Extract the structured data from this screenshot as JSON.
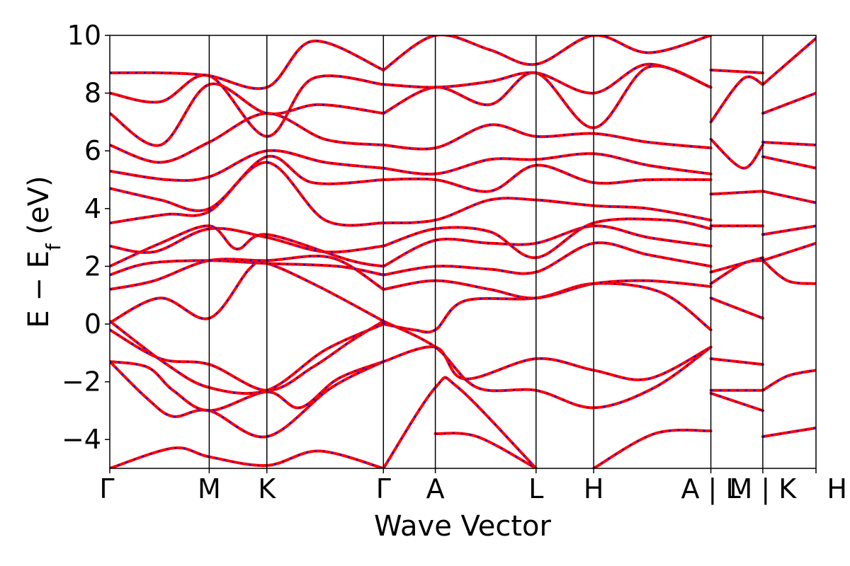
{
  "chart_data": {
    "type": "line",
    "xlabel": "Wave Vector",
    "ylabel_parts": {
      "main": "E − E",
      "sub": "f",
      "unit": " (eV)"
    },
    "ylim": [
      -5,
      10
    ],
    "yticks": [
      -4,
      -2,
      0,
      2,
      4,
      6,
      8,
      10
    ],
    "ytick_labels": [
      "−4",
      "−2",
      "0",
      "2",
      "4",
      "6",
      "8",
      "10"
    ],
    "xlim": [
      0,
      11.15
    ],
    "high_symmetry_points": [
      {
        "label": "Γ",
        "x": 0.0
      },
      {
        "label": "M",
        "x": 1.57
      },
      {
        "label": "K",
        "x": 2.48
      },
      {
        "label": "Γ",
        "x": 4.32
      },
      {
        "label": "A",
        "x": 5.14
      },
      {
        "label": "L",
        "x": 6.73
      },
      {
        "label": "H",
        "x": 7.64
      },
      {
        "label": "A | L",
        "x": 9.49
      },
      {
        "label": "M | K",
        "x": 10.31
      },
      {
        "label": "H",
        "x": 11.15
      }
    ],
    "colors": {
      "series_dft": "#ff0000",
      "series_wannier": "#0000ff",
      "vlines": "#000000"
    },
    "series": [
      {
        "style": "solid-red",
        "values_note": ""
      },
      {
        "style": "dashed-blue",
        "values_note": ""
      }
    ],
    "bands_segment1": [
      [
        [
          0.0,
          -5.0
        ],
        [
          1.0,
          -4.3
        ],
        [
          1.57,
          -4.6
        ],
        [
          2.48,
          -4.9
        ],
        [
          3.3,
          -4.4
        ],
        [
          4.32,
          -5.0
        ]
      ],
      [
        [
          0.0,
          -1.3
        ],
        [
          0.6,
          -1.5
        ],
        [
          1.0,
          -2.3
        ],
        [
          1.57,
          -3.0
        ],
        [
          2.48,
          -2.35
        ],
        [
          3.0,
          -2.9
        ],
        [
          3.6,
          -1.9
        ],
        [
          4.32,
          -1.3
        ]
      ],
      [
        [
          0.0,
          -0.2
        ],
        [
          0.8,
          -1.2
        ],
        [
          1.57,
          -1.4
        ],
        [
          2.48,
          -2.3
        ],
        [
          3.2,
          -1.5
        ],
        [
          3.8,
          -0.6
        ],
        [
          4.32,
          0.1
        ]
      ],
      [
        [
          0.0,
          0.1
        ],
        [
          0.9,
          -1.4
        ],
        [
          1.57,
          -2.2
        ],
        [
          2.48,
          -2.3
        ],
        [
          3.4,
          -0.9
        ],
        [
          4.32,
          0.0
        ]
      ],
      [
        [
          0.0,
          -1.3
        ],
        [
          0.6,
          -2.6
        ],
        [
          1.0,
          -3.2
        ],
        [
          1.57,
          -3.0
        ],
        [
          2.48,
          -3.9
        ],
        [
          3.5,
          -2.2
        ],
        [
          4.32,
          -1.3
        ]
      ],
      [
        [
          0.0,
          0.05
        ],
        [
          0.8,
          0.9
        ],
        [
          1.57,
          0.2
        ],
        [
          2.2,
          1.9
        ],
        [
          2.48,
          2.1
        ],
        [
          3.3,
          1.3
        ],
        [
          4.32,
          0.1
        ]
      ],
      [
        [
          0.0,
          1.2
        ],
        [
          0.7,
          1.5
        ],
        [
          1.57,
          2.2
        ],
        [
          2.48,
          2.2
        ],
        [
          3.5,
          2.3
        ],
        [
          4.32,
          1.2
        ]
      ],
      [
        [
          0.0,
          1.7
        ],
        [
          0.6,
          2.1
        ],
        [
          1.57,
          2.2
        ],
        [
          2.48,
          2.1
        ],
        [
          3.6,
          2.0
        ],
        [
          4.32,
          1.7
        ]
      ],
      [
        [
          0.0,
          2.0
        ],
        [
          0.8,
          2.8
        ],
        [
          1.57,
          3.4
        ],
        [
          2.0,
          2.6
        ],
        [
          2.48,
          3.1
        ],
        [
          3.8,
          2.2
        ],
        [
          4.32,
          2.0
        ]
      ],
      [
        [
          0.0,
          2.7
        ],
        [
          0.7,
          2.5
        ],
        [
          1.57,
          3.3
        ],
        [
          2.48,
          3.0
        ],
        [
          3.4,
          2.5
        ],
        [
          4.32,
          2.7
        ]
      ],
      [
        [
          0.0,
          3.5
        ],
        [
          0.9,
          3.8
        ],
        [
          1.57,
          3.9
        ],
        [
          2.48,
          5.6
        ],
        [
          3.4,
          3.6
        ],
        [
          4.32,
          3.5
        ]
      ],
      [
        [
          0.0,
          4.7
        ],
        [
          0.8,
          4.3
        ],
        [
          1.57,
          4.0
        ],
        [
          2.48,
          5.8
        ],
        [
          3.2,
          4.9
        ],
        [
          4.32,
          5.0
        ]
      ],
      [
        [
          0.0,
          5.3
        ],
        [
          0.9,
          5.0
        ],
        [
          1.57,
          5.1
        ],
        [
          2.48,
          6.0
        ],
        [
          3.4,
          5.6
        ],
        [
          4.32,
          5.4
        ]
      ],
      [
        [
          0.0,
          6.2
        ],
        [
          0.8,
          5.6
        ],
        [
          1.57,
          6.3
        ],
        [
          2.48,
          7.3
        ],
        [
          3.4,
          6.4
        ],
        [
          4.32,
          6.2
        ]
      ],
      [
        [
          0.0,
          7.3
        ],
        [
          0.8,
          6.2
        ],
        [
          1.57,
          8.3
        ],
        [
          2.48,
          7.3
        ],
        [
          3.3,
          7.6
        ],
        [
          4.32,
          7.3
        ]
      ],
      [
        [
          0.0,
          8.0
        ],
        [
          0.8,
          7.7
        ],
        [
          1.57,
          8.6
        ],
        [
          2.48,
          6.5
        ],
        [
          3.2,
          8.5
        ],
        [
          4.32,
          8.3
        ]
      ],
      [
        [
          0.0,
          8.7
        ],
        [
          0.8,
          8.7
        ],
        [
          1.57,
          8.6
        ],
        [
          2.48,
          8.2
        ],
        [
          3.2,
          9.8
        ],
        [
          4.32,
          8.8
        ]
      ]
    ],
    "bands_segment2": [
      [
        [
          4.32,
          -1.3
        ],
        [
          5.14,
          -0.8
        ],
        [
          5.6,
          -1.9
        ],
        [
          6.73,
          -1.2
        ],
        [
          7.64,
          -1.6
        ],
        [
          8.5,
          -1.9
        ],
        [
          9.49,
          -0.8
        ]
      ],
      [
        [
          4.32,
          0.1
        ],
        [
          5.14,
          -0.8
        ],
        [
          5.8,
          -2.2
        ],
        [
          6.73,
          -2.3
        ],
        [
          7.64,
          -2.9
        ],
        [
          8.6,
          -2.2
        ],
        [
          9.49,
          -0.8
        ]
      ],
      [
        [
          4.32,
          0.0
        ],
        [
          4.8,
          -0.2
        ],
        [
          5.14,
          -0.2
        ],
        [
          5.6,
          0.8
        ],
        [
          6.73,
          0.9
        ],
        [
          7.64,
          1.4
        ],
        [
          8.7,
          1.1
        ],
        [
          9.49,
          -0.2
        ]
      ],
      [
        [
          4.32,
          -5.0
        ],
        [
          5.14,
          -2.2
        ],
        [
          5.5,
          -2.2
        ],
        [
          6.73,
          -5.0
        ]
      ],
      [
        [
          5.14,
          -3.8
        ],
        [
          5.8,
          -3.9
        ],
        [
          6.73,
          -5.0
        ]
      ],
      [
        [
          7.64,
          -5.0
        ],
        [
          8.6,
          -3.8
        ],
        [
          9.49,
          -3.7
        ]
      ],
      [
        [
          4.32,
          1.2
        ],
        [
          5.14,
          1.5
        ],
        [
          6.0,
          1.2
        ],
        [
          6.73,
          0.9
        ],
        [
          7.64,
          1.4
        ],
        [
          8.5,
          1.5
        ],
        [
          9.49,
          1.3
        ]
      ],
      [
        [
          4.32,
          1.7
        ],
        [
          5.14,
          2.0
        ],
        [
          6.0,
          1.9
        ],
        [
          6.73,
          1.8
        ],
        [
          7.64,
          2.8
        ],
        [
          8.5,
          2.4
        ],
        [
          9.49,
          2.0
        ]
      ],
      [
        [
          4.32,
          2.0
        ],
        [
          5.14,
          2.9
        ],
        [
          6.0,
          2.8
        ],
        [
          6.73,
          2.8
        ],
        [
          7.64,
          3.4
        ],
        [
          8.5,
          3.0
        ],
        [
          9.49,
          2.7
        ]
      ],
      [
        [
          4.32,
          2.7
        ],
        [
          5.14,
          3.3
        ],
        [
          6.0,
          3.2
        ],
        [
          6.73,
          2.3
        ],
        [
          7.64,
          3.5
        ],
        [
          8.8,
          3.6
        ],
        [
          9.49,
          3.3
        ]
      ],
      [
        [
          4.32,
          3.5
        ],
        [
          5.14,
          3.6
        ],
        [
          6.0,
          4.3
        ],
        [
          6.73,
          4.3
        ],
        [
          7.64,
          4.1
        ],
        [
          8.5,
          4.0
        ],
        [
          9.49,
          3.6
        ]
      ],
      [
        [
          4.32,
          5.0
        ],
        [
          5.14,
          5.0
        ],
        [
          6.0,
          4.6
        ],
        [
          6.73,
          5.5
        ],
        [
          7.64,
          4.9
        ],
        [
          8.5,
          5.0
        ],
        [
          9.49,
          5.0
        ]
      ],
      [
        [
          4.32,
          5.4
        ],
        [
          5.14,
          5.2
        ],
        [
          6.0,
          5.7
        ],
        [
          6.73,
          5.7
        ],
        [
          7.64,
          5.9
        ],
        [
          8.5,
          5.5
        ],
        [
          9.49,
          5.2
        ]
      ],
      [
        [
          4.32,
          6.2
        ],
        [
          5.14,
          6.1
        ],
        [
          6.0,
          6.9
        ],
        [
          6.73,
          6.5
        ],
        [
          7.64,
          6.6
        ],
        [
          8.5,
          6.3
        ],
        [
          9.49,
          6.1
        ]
      ],
      [
        [
          4.32,
          7.3
        ],
        [
          5.14,
          8.2
        ],
        [
          6.0,
          7.6
        ],
        [
          6.73,
          8.7
        ],
        [
          7.64,
          6.8
        ],
        [
          8.5,
          8.9
        ],
        [
          9.49,
          8.2
        ]
      ],
      [
        [
          4.32,
          8.3
        ],
        [
          5.14,
          8.2
        ],
        [
          6.0,
          8.4
        ],
        [
          6.73,
          8.7
        ],
        [
          7.64,
          8.0
        ],
        [
          8.5,
          9.0
        ],
        [
          9.49,
          8.2
        ]
      ],
      [
        [
          4.32,
          8.8
        ],
        [
          5.14,
          10.0
        ],
        [
          6.0,
          9.5
        ],
        [
          6.73,
          9.0
        ],
        [
          7.64,
          10.0
        ],
        [
          8.5,
          9.4
        ],
        [
          9.49,
          10.0
        ]
      ]
    ],
    "bands_segment3": [
      [
        [
          9.49,
          -1.2
        ],
        [
          10.31,
          -1.4
        ]
      ],
      [
        [
          9.49,
          -2.3
        ],
        [
          10.31,
          -2.3
        ]
      ],
      [
        [
          9.49,
          -2.4
        ],
        [
          10.31,
          -3.0
        ]
      ],
      [
        [
          9.49,
          0.9
        ],
        [
          10.31,
          0.2
        ]
      ],
      [
        [
          9.49,
          1.4
        ],
        [
          10.0,
          2.1
        ],
        [
          10.31,
          2.2
        ]
      ],
      [
        [
          9.49,
          1.8
        ],
        [
          10.31,
          2.3
        ]
      ],
      [
        [
          9.49,
          3.4
        ],
        [
          10.31,
          3.4
        ]
      ],
      [
        [
          9.49,
          4.5
        ],
        [
          10.31,
          4.6
        ]
      ],
      [
        [
          9.49,
          6.4
        ],
        [
          10.0,
          5.4
        ],
        [
          10.31,
          6.2
        ]
      ],
      [
        [
          9.49,
          7.0
        ],
        [
          10.0,
          8.5
        ],
        [
          10.31,
          8.3
        ]
      ],
      [
        [
          9.49,
          8.8
        ],
        [
          10.31,
          8.7
        ]
      ]
    ],
    "bands_segment4": [
      [
        [
          10.31,
          -2.3
        ],
        [
          10.7,
          -1.8
        ],
        [
          11.15,
          -1.6
        ]
      ],
      [
        [
          10.31,
          -3.9
        ],
        [
          11.15,
          -3.6
        ]
      ],
      [
        [
          10.31,
          2.2
        ],
        [
          10.7,
          1.5
        ],
        [
          11.15,
          1.4
        ]
      ],
      [
        [
          10.31,
          2.2
        ],
        [
          11.15,
          2.8
        ]
      ],
      [
        [
          10.31,
          3.1
        ],
        [
          11.15,
          3.4
        ]
      ],
      [
        [
          10.31,
          4.6
        ],
        [
          11.15,
          4.2
        ]
      ],
      [
        [
          10.31,
          5.8
        ],
        [
          11.15,
          5.4
        ]
      ],
      [
        [
          10.31,
          6.3
        ],
        [
          11.15,
          6.2
        ]
      ],
      [
        [
          10.31,
          7.3
        ],
        [
          11.15,
          8.0
        ]
      ],
      [
        [
          10.31,
          8.3
        ],
        [
          11.15,
          9.9
        ]
      ]
    ]
  }
}
